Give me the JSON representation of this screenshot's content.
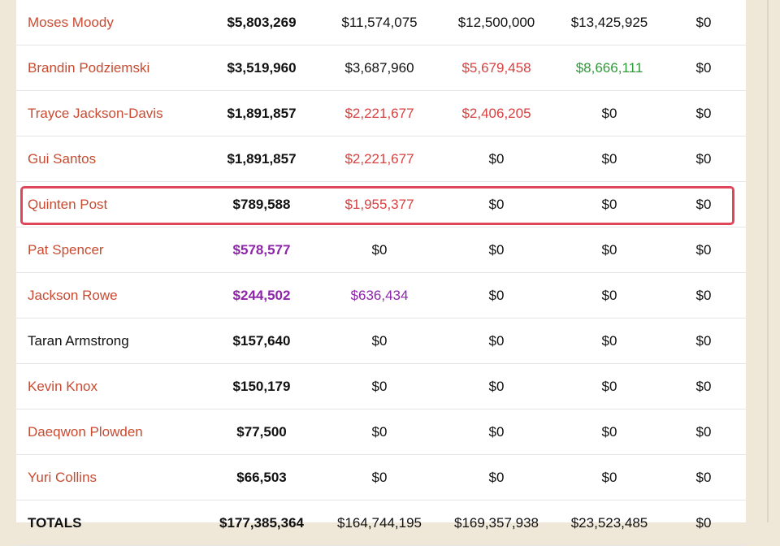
{
  "table": {
    "rows": [
      [
        "Moses Moody",
        "$5,803,269",
        "$11,574,075",
        "$12,500,000",
        "$13,425,925",
        "$0"
      ],
      [
        "Brandin Podziemski",
        "$3,519,960",
        "$3,687,960",
        "$5,679,458",
        "$8,666,111",
        "$0"
      ],
      [
        "Trayce Jackson-Davis",
        "$1,891,857",
        "$2,221,677",
        "$2,406,205",
        "$0",
        "$0"
      ],
      [
        "Gui Santos",
        "$1,891,857",
        "$2,221,677",
        "$0",
        "$0",
        "$0"
      ],
      [
        "Quinten Post",
        "$789,588",
        "$1,955,377",
        "$0",
        "$0",
        "$0"
      ],
      [
        "Pat Spencer",
        "$578,577",
        "$0",
        "$0",
        "$0",
        "$0"
      ],
      [
        "Jackson Rowe",
        "$244,502",
        "$636,434",
        "$0",
        "$0",
        "$0"
      ],
      [
        "Taran Armstrong",
        "$157,640",
        "$0",
        "$0",
        "$0",
        "$0"
      ],
      [
        "Kevin Knox",
        "$150,179",
        "$0",
        "$0",
        "$0",
        "$0"
      ],
      [
        "Daeqwon Plowden",
        "$77,500",
        "$0",
        "$0",
        "$0",
        "$0"
      ],
      [
        "Yuri Collins",
        "$66,503",
        "$0",
        "$0",
        "$0",
        "$0"
      ],
      [
        "TOTALS",
        "$177,385,364",
        "$164,744,195",
        "$169,357,938",
        "$23,523,485",
        "$0"
      ]
    ]
  }
}
